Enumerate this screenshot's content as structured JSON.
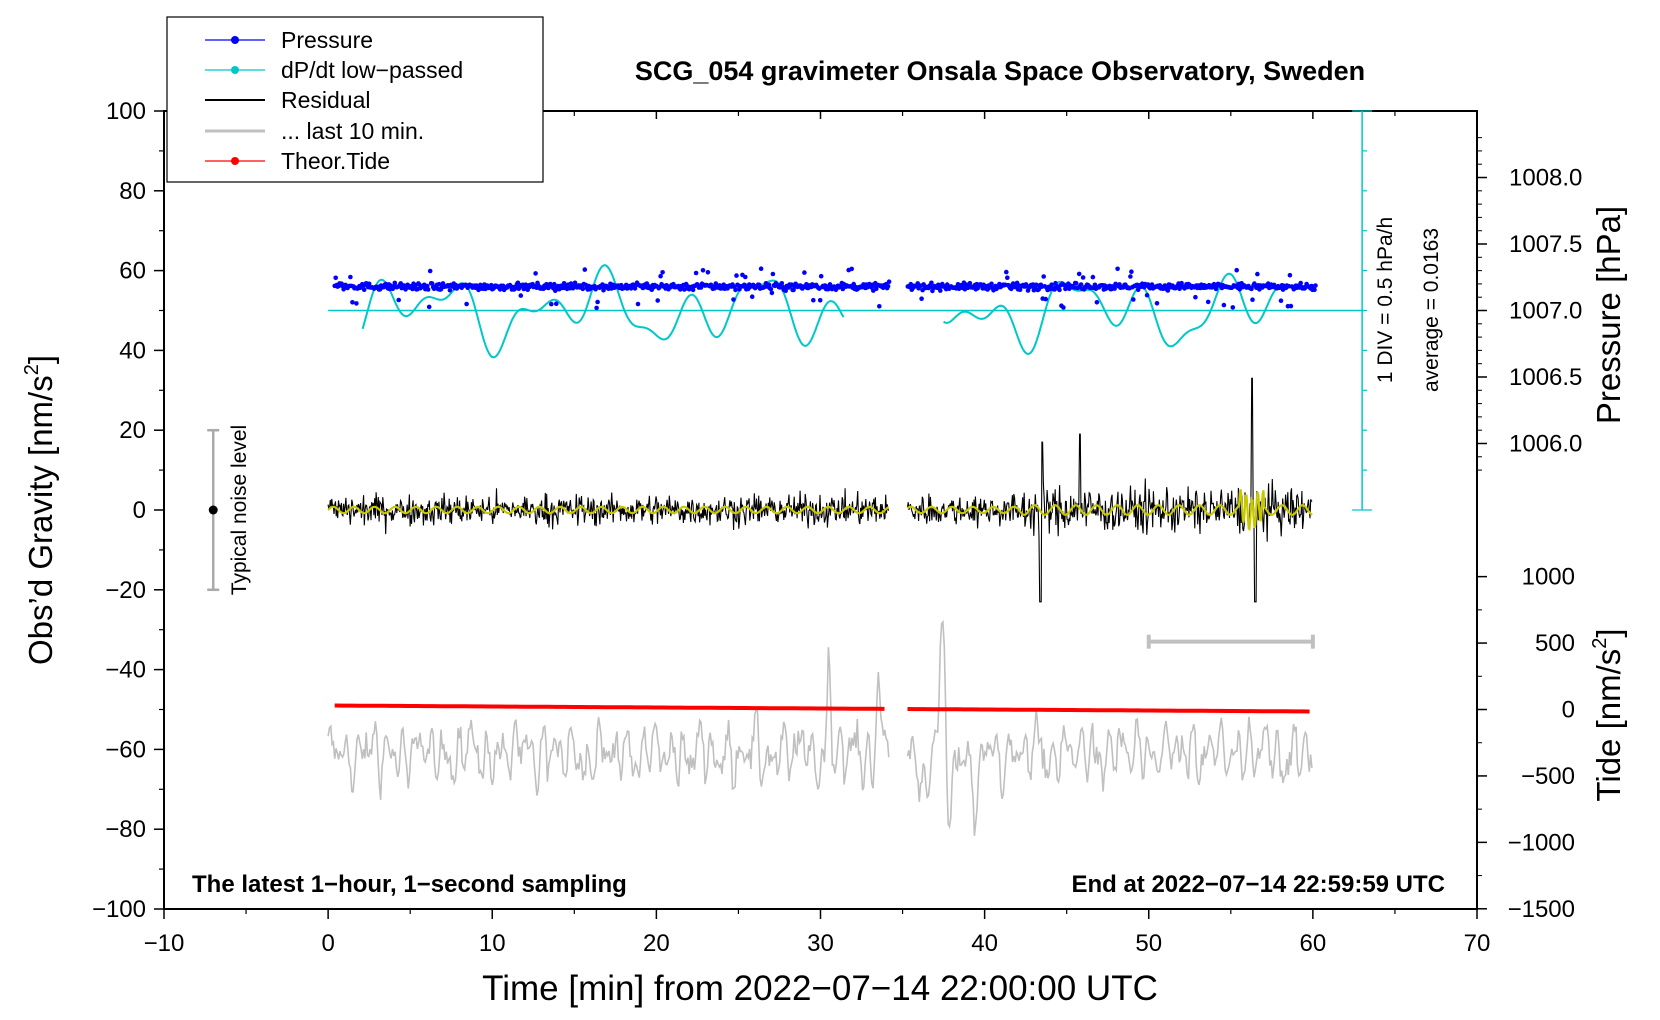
{
  "chart_data": {
    "type": "line",
    "title": "SCG_054 gravimeter Onsala Space Observatory, Sweden",
    "xlabel": "Time [min] from 2022−07−14 22:00:00 UTC",
    "ylabel": "Obs’d Gravity [nm/s",
    "ylabel_sup": "2",
    "ylabel_end": "]",
    "y2label": "Pressure [hPa]",
    "y3label": "Tide [nm/s",
    "y3label_sup": "2",
    "y3label_end": "]",
    "xlim": [
      -10,
      70
    ],
    "ylim": [
      -100,
      100
    ],
    "xticks": [
      -10,
      0,
      10,
      20,
      30,
      40,
      50,
      60,
      70
    ],
    "xtick_labels": [
      "−10",
      "0",
      "10",
      "20",
      "30",
      "40",
      "50",
      "60",
      "70"
    ],
    "yticks": [
      -100,
      -80,
      -60,
      -40,
      -20,
      0,
      20,
      40,
      60,
      80,
      100
    ],
    "ytick_labels": [
      "−100",
      "−80",
      "−60",
      "−40",
      "−20",
      "0",
      "20",
      "40",
      "60",
      "80",
      "100"
    ],
    "pressure_axis": {
      "ticks": [
        1006.0,
        1006.5,
        1007.0,
        1007.5,
        1008.0
      ],
      "labels": [
        "1006.0",
        "1006.5",
        "1007.0",
        "1007.5",
        "1008.0"
      ],
      "gravity_equiv_of_1007": 50,
      "nm_per_hpa": 33.33
    },
    "tide_axis": {
      "ticks": [
        -1500,
        -1000,
        -500,
        0,
        500,
        1000
      ],
      "labels": [
        "−1500",
        "−1000",
        "−500",
        "0",
        "500",
        "1000"
      ],
      "gravity_equiv_of_0": -50,
      "nm_per_tide": 0.0333
    },
    "dpdt_scale": {
      "label": "1 DIV = 0.5 hPa/h",
      "average_label": "average = 0.0163",
      "x": 63,
      "y_range": [
        0,
        100
      ],
      "baseline_y": 50,
      "tick_step": 10
    },
    "noise_bar": {
      "label": "Typical noise level",
      "x": -7,
      "y_center": 0,
      "y_range": [
        -20,
        20
      ]
    },
    "last10_bar": {
      "x_range": [
        50,
        60
      ],
      "y": -33
    },
    "data_gap": [
      34.2,
      35.3
    ],
    "series": [
      {
        "name": "Pressure",
        "color": "#0000ff",
        "style": "dots",
        "approx_hpa": 1007.17,
        "approx_gravity": 56
      },
      {
        "name": "dP/dt low−passed",
        "color": "#00c8c8",
        "style": "line",
        "baseline": 50
      },
      {
        "name": "Residual",
        "color": "#000000",
        "style": "line",
        "center": 0,
        "typical_amplitude": 5,
        "peaks": [
          [
            43.4,
            -23
          ],
          [
            43.5,
            17
          ],
          [
            45.8,
            19
          ],
          [
            56.3,
            33
          ],
          [
            56.5,
            -23
          ]
        ]
      },
      {
        "name": "... last 10 min.",
        "color": "#c0c0c0",
        "style": "line",
        "center": -61,
        "peaks": [
          [
            37.5,
            -28
          ],
          [
            37.8,
            -85
          ],
          [
            30.5,
            -40
          ],
          [
            33.5,
            -42
          ]
        ]
      },
      {
        "name": "Theor.Tide",
        "color": "#ff0000",
        "style": "line",
        "y_start": -49,
        "y_end": -50.5,
        "tide_start": 20,
        "tide_end": -35
      }
    ],
    "annotations": {
      "left": "The latest 1−hour, 1−second sampling",
      "right": "End at 2022−07−14 22:59:59 UTC"
    },
    "legend": {
      "placement": "top-left",
      "entries": [
        "Pressure",
        "dP/dt low−passed",
        "Residual",
        "... last 10 min.",
        "Theor.Tide"
      ]
    }
  }
}
